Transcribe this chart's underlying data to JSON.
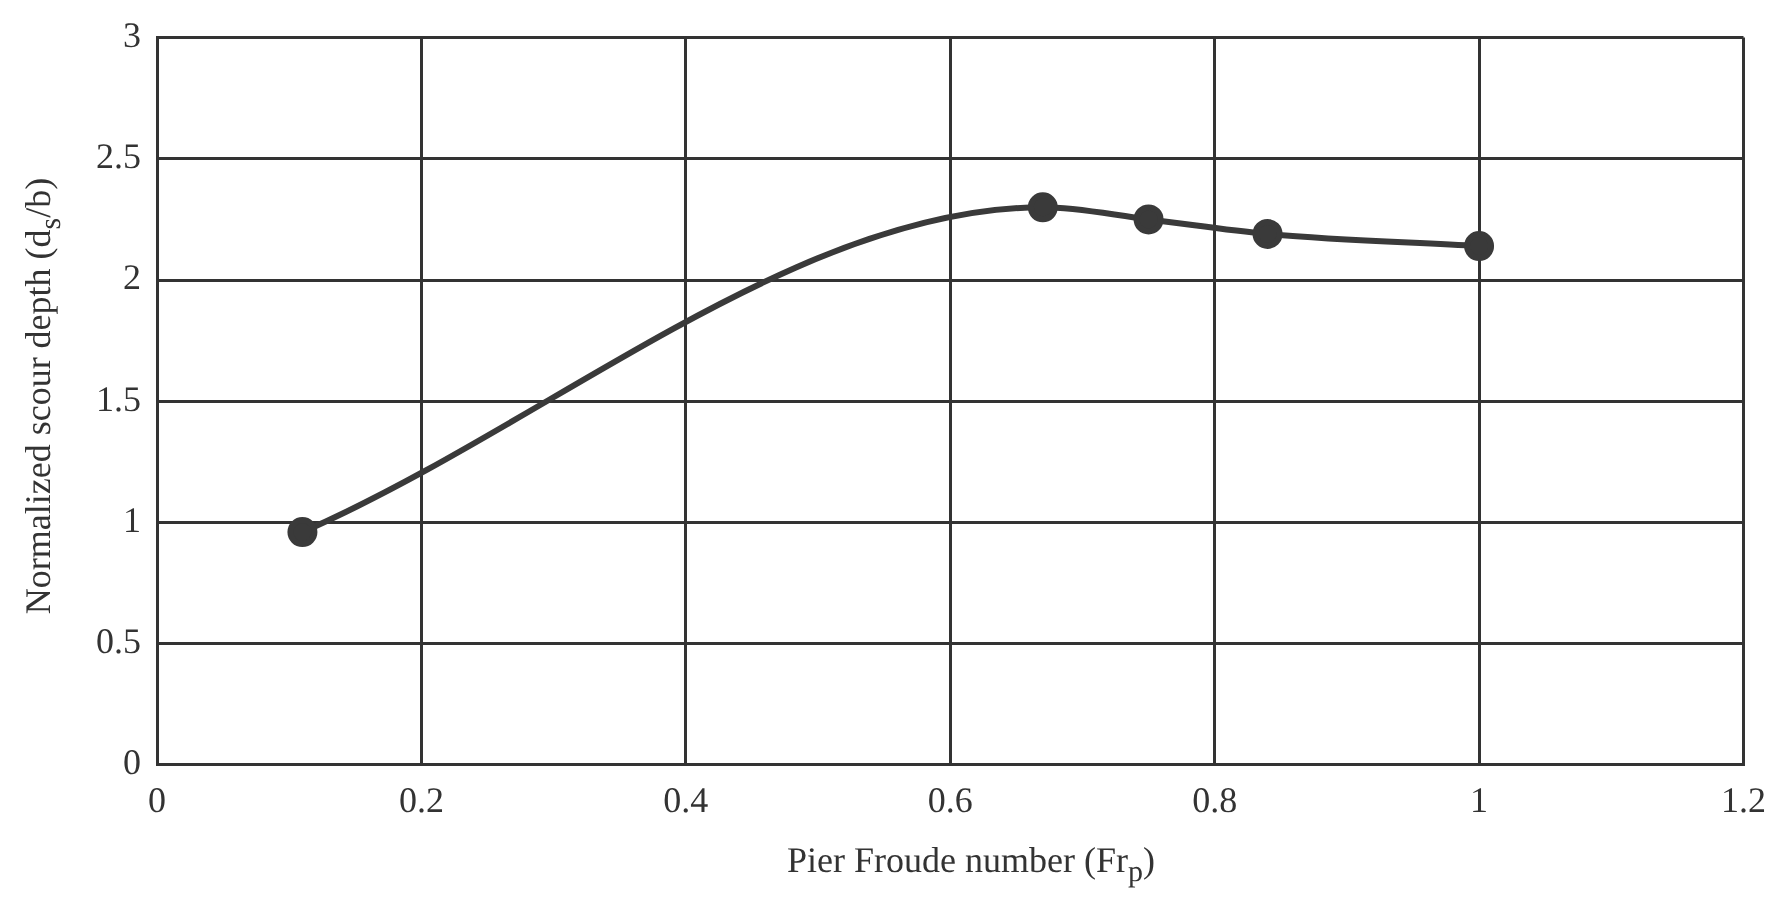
{
  "chart_data": {
    "type": "line",
    "xlabel": "Pier Froude number (Fr$_{p}$)",
    "ylabel": "Normalized scour depth (d$_{s}$/b)",
    "series": [
      {
        "x": [
          0.11,
          0.67,
          0.75,
          0.84,
          1.0
        ],
        "values": [
          0.96,
          2.3,
          2.25,
          2.19,
          2.14
        ],
        "color": "#3a3a3a"
      }
    ],
    "xlim": [
      0,
      1.2
    ],
    "xticks": [
      0,
      0.2,
      0.4,
      0.6,
      0.8,
      1,
      1.2
    ],
    "ylim": [
      0,
      3
    ],
    "yticks": [
      0,
      0.5,
      1,
      1.5,
      2,
      2.5,
      3
    ],
    "grid": true,
    "legend": false,
    "marker": "circle",
    "line_style": "solid"
  }
}
